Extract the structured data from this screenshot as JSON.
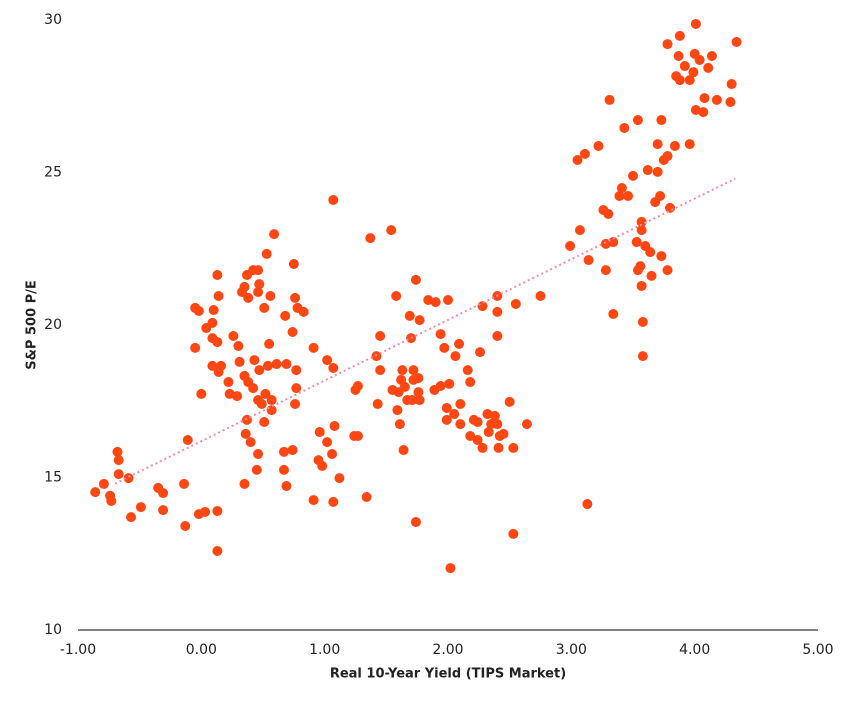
{
  "chart_data": {
    "type": "scatter",
    "x_label": "Real 10-Year Yield (TIPS Market)",
    "y_label": "S&P 500 P/E",
    "color": "#ff4713",
    "xlim": [
      -1,
      5
    ],
    "ylim": [
      10,
      30
    ],
    "xticks": [
      {
        "value": -1,
        "label": "-1.00"
      },
      {
        "value": 0,
        "label": "0.00"
      },
      {
        "value": 1,
        "label": "1.00"
      },
      {
        "value": 2,
        "label": "2.00"
      },
      {
        "value": 3,
        "label": "3.00"
      },
      {
        "value": 4,
        "label": "4.00"
      },
      {
        "value": 5,
        "label": "5.00"
      }
    ],
    "yticks": [
      10,
      15,
      20,
      25,
      30
    ],
    "grid": false,
    "trendline": {
      "color": "#f48ba6",
      "x": [
        -0.7,
        4.33
      ],
      "values": [
        14.8,
        24.8
      ]
    },
    "x": [
      -0.86,
      -0.79,
      -0.74,
      -0.73,
      -0.68,
      -0.67,
      -0.67,
      -0.59,
      -0.57,
      -0.49,
      -0.35,
      -0.31,
      -0.31,
      -0.14,
      -0.13,
      -0.11,
      -0.05,
      -0.05,
      -0.02,
      0.0,
      -0.02,
      0.03,
      0.13,
      0.13,
      0.04,
      0.09,
      0.1,
      0.13,
      0.14,
      0.09,
      0.13,
      0.09,
      0.14,
      0.16,
      0.22,
      0.23,
      0.26,
      0.3,
      0.31,
      0.29,
      0.33,
      0.35,
      0.37,
      0.38,
      0.42,
      0.46,
      0.46,
      0.47,
      0.51,
      0.53,
      0.56,
      0.59,
      0.35,
      0.38,
      0.42,
      0.43,
      0.47,
      0.46,
      0.49,
      0.52,
      0.54,
      0.57,
      0.57,
      0.61,
      0.55,
      0.37,
      0.36,
      0.4,
      0.46,
      0.45,
      0.51,
      0.35,
      0.67,
      0.67,
      0.69,
      0.74,
      0.69,
      0.74,
      0.75,
      0.76,
      0.78,
      0.83,
      0.77,
      0.77,
      0.76,
      0.68,
      0.91,
      0.96,
      0.95,
      0.98,
      1.02,
      1.06,
      1.02,
      1.07,
      1.07,
      1.08,
      1.07,
      1.12,
      0.91,
      1.24,
      1.27,
      1.25,
      1.27,
      1.34,
      1.37,
      1.42,
      1.45,
      1.43,
      1.45,
      1.54,
      1.55,
      1.58,
      1.6,
      1.59,
      1.61,
      1.62,
      1.63,
      1.65,
      1.64,
      1.67,
      1.69,
      1.7,
      1.71,
      1.72,
      1.72,
      1.74,
      1.74,
      1.76,
      1.76,
      1.77,
      1.77,
      1.84,
      1.89,
      1.9,
      1.94,
      1.94,
      1.97,
      1.99,
      1.99,
      2.0,
      2.01,
      2.02,
      2.05,
      2.06,
      2.09,
      2.1,
      2.1,
      2.16,
      2.18,
      2.18,
      2.21,
      2.24,
      2.24,
      2.28,
      2.26,
      2.28,
      2.32,
      2.33,
      2.35,
      2.38,
      2.4,
      2.4,
      2.4,
      2.41,
      2.4,
      2.42,
      2.45,
      2.5,
      2.53,
      2.53,
      2.55,
      2.64,
      2.75,
      2.99,
      3.05,
      3.07,
      3.11,
      3.13,
      3.14,
      3.22,
      3.26,
      3.28,
      3.28,
      3.3,
      3.31,
      3.34,
      3.34,
      3.39,
      3.41,
      3.43,
      3.46,
      3.5,
      3.54,
      3.53,
      3.54,
      3.56,
      3.57,
      3.57,
      3.57,
      3.58,
      3.58,
      3.6,
      3.62,
      3.64,
      3.65,
      3.68,
      3.7,
      3.7,
      3.72,
      3.73,
      3.73,
      3.75,
      3.78,
      3.78,
      3.8,
      3.78,
      3.84,
      3.85,
      3.88,
      3.87,
      3.88,
      3.92,
      3.96,
      3.96,
      3.99,
      4.0,
      4.01,
      4.04,
      4.07,
      4.08,
      4.11,
      4.14,
      4.18,
      4.29,
      4.3,
      4.34,
      4.01
    ],
    "values": [
      14.52,
      14.79,
      14.4,
      14.23,
      15.84,
      15.57,
      15.11,
      14.98,
      13.7,
      14.03,
      14.66,
      14.49,
      13.93,
      14.79,
      13.41,
      16.23,
      19.25,
      20.56,
      20.46,
      17.74,
      13.8,
      13.87,
      13.9,
      12.59,
      19.9,
      20.07,
      20.49,
      21.64,
      20.95,
      19.57,
      19.44,
      18.66,
      18.46,
      18.66,
      18.13,
      17.74,
      19.64,
      19.31,
      18.79,
      17.67,
      21.08,
      21.25,
      21.64,
      20.89,
      21.8,
      21.8,
      21.08,
      21.34,
      20.56,
      22.33,
      20.95,
      22.98,
      18.33,
      18.13,
      17.93,
      18.85,
      18.52,
      17.54,
      17.41,
      17.74,
      18.66,
      17.54,
      17.21,
      18.72,
      19.38,
      16.89,
      16.43,
      16.16,
      15.77,
      15.25,
      16.82,
      14.79,
      15.84,
      15.25,
      14.72,
      15.9,
      18.72,
      19.77,
      22.0,
      20.89,
      20.56,
      20.43,
      18.52,
      17.93,
      17.41,
      20.3,
      19.25,
      16.49,
      15.57,
      15.38,
      18.85,
      15.77,
      16.16,
      18.59,
      24.1,
      16.69,
      14.2,
      14.98,
      14.26,
      16.36,
      16.36,
      17.87,
      18.0,
      14.36,
      22.85,
      18.98,
      19.64,
      17.41,
      18.52,
      23.11,
      17.87,
      20.95,
      17.8,
      17.21,
      16.75,
      18.2,
      18.52,
      17.97,
      15.9,
      17.54,
      20.3,
      19.57,
      17.54,
      18.2,
      18.52,
      21.48,
      13.54,
      18.26,
      17.8,
      20.16,
      17.54,
      20.82,
      17.87,
      20.75,
      19.7,
      18.0,
      19.25,
      17.28,
      16.89,
      20.82,
      18.07,
      12.03,
      17.08,
      18.98,
      19.38,
      17.41,
      16.75,
      18.52,
      18.13,
      16.36,
      16.89,
      16.82,
      16.23,
      15.97,
      19.11,
      20.62,
      17.08,
      16.49,
      16.75,
      17.02,
      20.95,
      19.64,
      20.43,
      15.97,
      16.75,
      16.36,
      16.43,
      17.48,
      15.97,
      13.15,
      20.69,
      16.75,
      20.95,
      22.59,
      25.41,
      23.11,
      25.61,
      14.13,
      22.13,
      25.87,
      23.77,
      21.8,
      22.66,
      23.64,
      27.38,
      22.72,
      20.36,
      24.23,
      24.49,
      26.46,
      24.23,
      24.89,
      26.72,
      22.72,
      21.8,
      21.93,
      23.38,
      23.11,
      21.28,
      20.1,
      18.98,
      22.59,
      25.08,
      22.39,
      21.61,
      24.03,
      25.02,
      25.93,
      24.23,
      26.72,
      22.26,
      25.41,
      25.54,
      21.8,
      23.84,
      29.21,
      25.87,
      28.16,
      29.48,
      28.82,
      28.03,
      28.49,
      28.03,
      25.93,
      28.29,
      28.89,
      27.05,
      28.69,
      26.98,
      27.44,
      28.43,
      28.82,
      27.38,
      27.31,
      27.9,
      29.28,
      29.87
    ]
  }
}
